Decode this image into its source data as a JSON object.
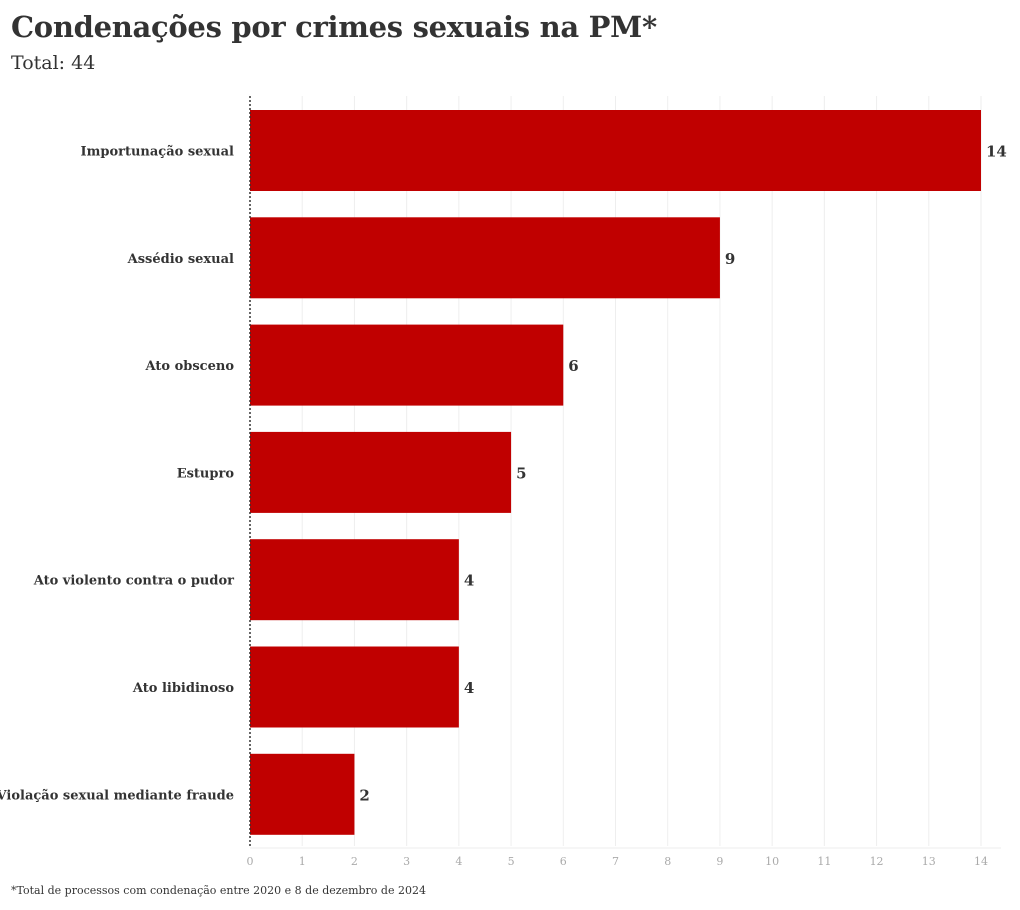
{
  "header": {
    "title": "Condenações por crimes sexuais na PM*",
    "subtitle": "Total: 44"
  },
  "footnote": "*Total de processos com condenação entre 2020 e 8 de dezembro de 2024",
  "colors": {
    "bar": "#c00000",
    "gridline": "#eeeeee",
    "axis_text": "#aaaaaa",
    "label_text": "#333333",
    "baseline": "#333333"
  },
  "chart_data": {
    "type": "bar",
    "orientation": "horizontal",
    "categories": [
      "Importunação sexual",
      "Assédio sexual",
      "Ato obsceno",
      "Estupro",
      "Ato violento contra o pudor",
      "Ato libidinoso",
      "Violação sexual mediante fraude"
    ],
    "values": [
      14,
      9,
      6,
      5,
      4,
      4,
      2
    ],
    "xlim": [
      0,
      14
    ],
    "xticks": [
      0,
      1,
      2,
      3,
      4,
      5,
      6,
      7,
      8,
      9,
      10,
      11,
      12,
      13,
      14
    ],
    "grid": true,
    "data_labels": true
  }
}
